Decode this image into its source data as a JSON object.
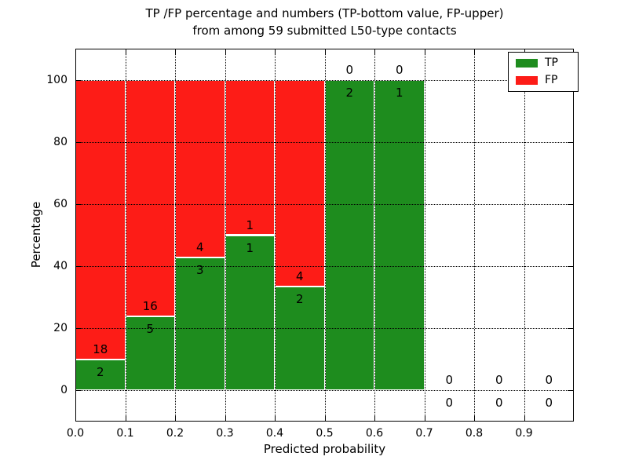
{
  "figure": {
    "title_line1": "TP /FP percentage and numbers (TP-bottom value, FP-upper)",
    "title_line2": "from among 59 submitted L50-type contacts",
    "xlabel": "Predicted probability",
    "ylabel": "Percentage"
  },
  "legend": {
    "position": "upper right",
    "items": [
      {
        "label": "TP",
        "color": "#1e8c1e"
      },
      {
        "label": "FP",
        "color": "#fd1c17"
      }
    ]
  },
  "colors": {
    "tp_green": "#1e8c1e",
    "fp_red": "#fd1c17",
    "text": "#000000",
    "grid": "#000000",
    "bar_edge": "#ffffff",
    "background": "#ffffff"
  },
  "chart_data": {
    "type": "bar",
    "stacked": true,
    "values_unit": "percent",
    "title": "TP /FP percentage and numbers (TP-bottom value, FP-upper) from among 59 submitted L50-type contacts",
    "xlabel": "Predicted probability",
    "ylabel": "Percentage",
    "total_contacts": 59,
    "grid": true,
    "legend_position": "upper right",
    "xlim": [
      0,
      1
    ],
    "ylim": [
      -10,
      110
    ],
    "yticks": [
      0,
      20,
      40,
      60,
      80,
      100
    ],
    "xticks": [
      0,
      0.1,
      0.2,
      0.3,
      0.4,
      0.5,
      0.6,
      0.7,
      0.8,
      0.9
    ],
    "xtick_labels": [
      "0.0",
      "0.1",
      "0.2",
      "0.3",
      "0.4",
      "0.5",
      "0.6",
      "0.7",
      "0.8",
      "0.9"
    ],
    "series": [
      {
        "name": "TP",
        "color": "#1e8c1e",
        "counts": [
          2,
          5,
          3,
          1,
          2,
          2,
          1,
          0,
          0,
          0
        ]
      },
      {
        "name": "FP",
        "color": "#fd1c17",
        "counts": [
          18,
          16,
          4,
          1,
          4,
          0,
          0,
          0,
          0,
          0
        ]
      }
    ],
    "bins": [
      {
        "x0": 0.0,
        "x1": 0.1,
        "tp": 2,
        "fp": 18,
        "tp_pct": 10.0,
        "fp_pct": 90.0
      },
      {
        "x0": 0.1,
        "x1": 0.2,
        "tp": 5,
        "fp": 16,
        "tp_pct": 23.81,
        "fp_pct": 76.19
      },
      {
        "x0": 0.2,
        "x1": 0.3,
        "tp": 3,
        "fp": 4,
        "tp_pct": 42.86,
        "fp_pct": 57.14
      },
      {
        "x0": 0.3,
        "x1": 0.4,
        "tp": 1,
        "fp": 1,
        "tp_pct": 50.0,
        "fp_pct": 50.0
      },
      {
        "x0": 0.4,
        "x1": 0.5,
        "tp": 2,
        "fp": 4,
        "tp_pct": 33.33,
        "fp_pct": 66.67
      },
      {
        "x0": 0.5,
        "x1": 0.6,
        "tp": 2,
        "fp": 0,
        "tp_pct": 100.0,
        "fp_pct": 0.0
      },
      {
        "x0": 0.6,
        "x1": 0.7,
        "tp": 1,
        "fp": 0,
        "tp_pct": 100.0,
        "fp_pct": 0.0
      },
      {
        "x0": 0.7,
        "x1": 0.8,
        "tp": 0,
        "fp": 0,
        "tp_pct": 0.0,
        "fp_pct": 0.0
      },
      {
        "x0": 0.8,
        "x1": 0.9,
        "tp": 0,
        "fp": 0,
        "tp_pct": 0.0,
        "fp_pct": 0.0
      },
      {
        "x0": 0.9,
        "x1": 1.0,
        "tp": 0,
        "fp": 0,
        "tp_pct": 0.0,
        "fp_pct": 0.0
      }
    ]
  }
}
